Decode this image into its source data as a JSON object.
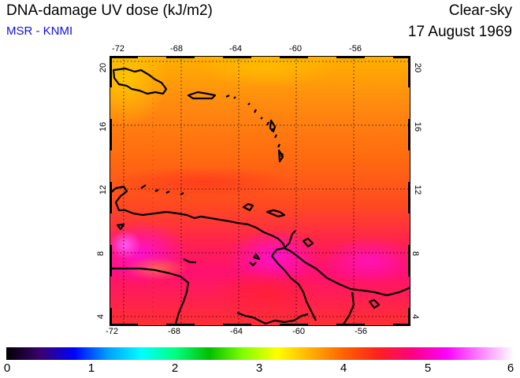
{
  "header": {
    "title": "DNA-damage UV dose (kJ/m2)",
    "source": "MSR - KNMI",
    "condition": "Clear-sky",
    "date": "17 August 1969"
  },
  "map": {
    "lon_range": [
      -73,
      -52
    ],
    "lat_range": [
      3.5,
      20.5
    ],
    "lon_ticks": [
      "-72",
      "-68",
      "-64",
      "-60",
      "-56"
    ],
    "lat_ticks": [
      "4",
      "8",
      "12",
      "16",
      "20"
    ],
    "grid": "dotted"
  },
  "colorbar": {
    "labels": [
      "0",
      "1",
      "2",
      "3",
      "4",
      "5",
      "6"
    ],
    "colors": [
      "#000000",
      "#3b0070",
      "#0000ff",
      "#00a0ff",
      "#00ffff",
      "#00ff80",
      "#00c000",
      "#80ff00",
      "#ffff00",
      "#ffb000",
      "#ff6000",
      "#ff2020",
      "#ff0080",
      "#ff00ff",
      "#ff80ff",
      "#ffffff"
    ]
  },
  "chart_data": {
    "type": "heatmap",
    "title": "DNA-damage UV dose (kJ/m2)",
    "xlabel": "",
    "ylabel": "",
    "xlim": [
      -73,
      -52
    ],
    "ylim": [
      3.5,
      20.5
    ],
    "color_range": [
      0,
      6
    ],
    "approx_values_by_latitude_band": [
      {
        "lat": 20,
        "value": 4.1
      },
      {
        "lat": 17,
        "value": 4.3
      },
      {
        "lat": 14,
        "value": 4.6
      },
      {
        "lat": 11,
        "value": 4.7
      },
      {
        "lat": 8,
        "value": 5.0
      },
      {
        "lat": 5,
        "value": 4.7
      }
    ]
  }
}
